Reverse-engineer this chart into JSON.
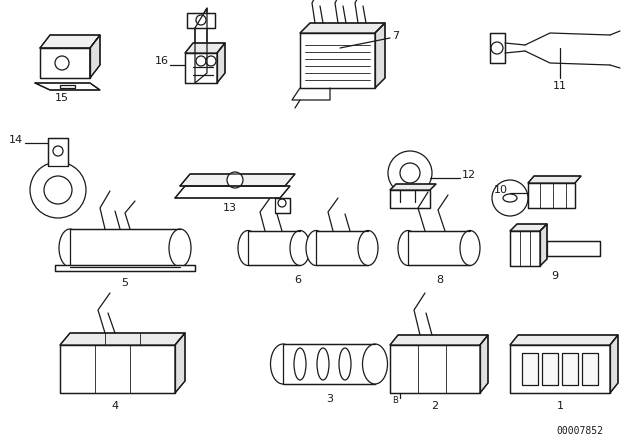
{
  "bg_color": "#ffffff",
  "line_color": "#1a1a1a",
  "part_number": "00007852",
  "figsize": [
    6.4,
    4.48
  ],
  "dpi": 100
}
